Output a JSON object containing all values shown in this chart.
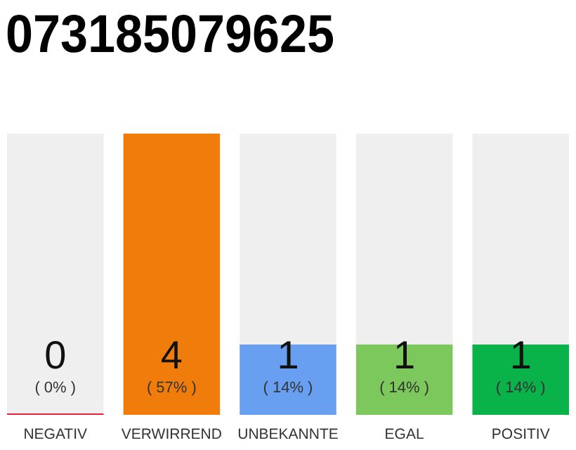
{
  "chart_data": {
    "type": "bar",
    "title": "073185079625",
    "categories": [
      "NEGATIV",
      "VERWIRREND",
      "UNBEKANNTE",
      "EGAL",
      "POSITIV"
    ],
    "values": [
      0,
      4,
      1,
      1,
      1
    ],
    "colors": [
      "#e8203c",
      "#f07c0c",
      "#689ff0",
      "#7cc85c",
      "#0ab34a"
    ],
    "data_labels": true,
    "annotations": [
      "( 0% )",
      "( 57% )",
      "( 14% )",
      "( 14% )",
      "( 14% )"
    ]
  }
}
